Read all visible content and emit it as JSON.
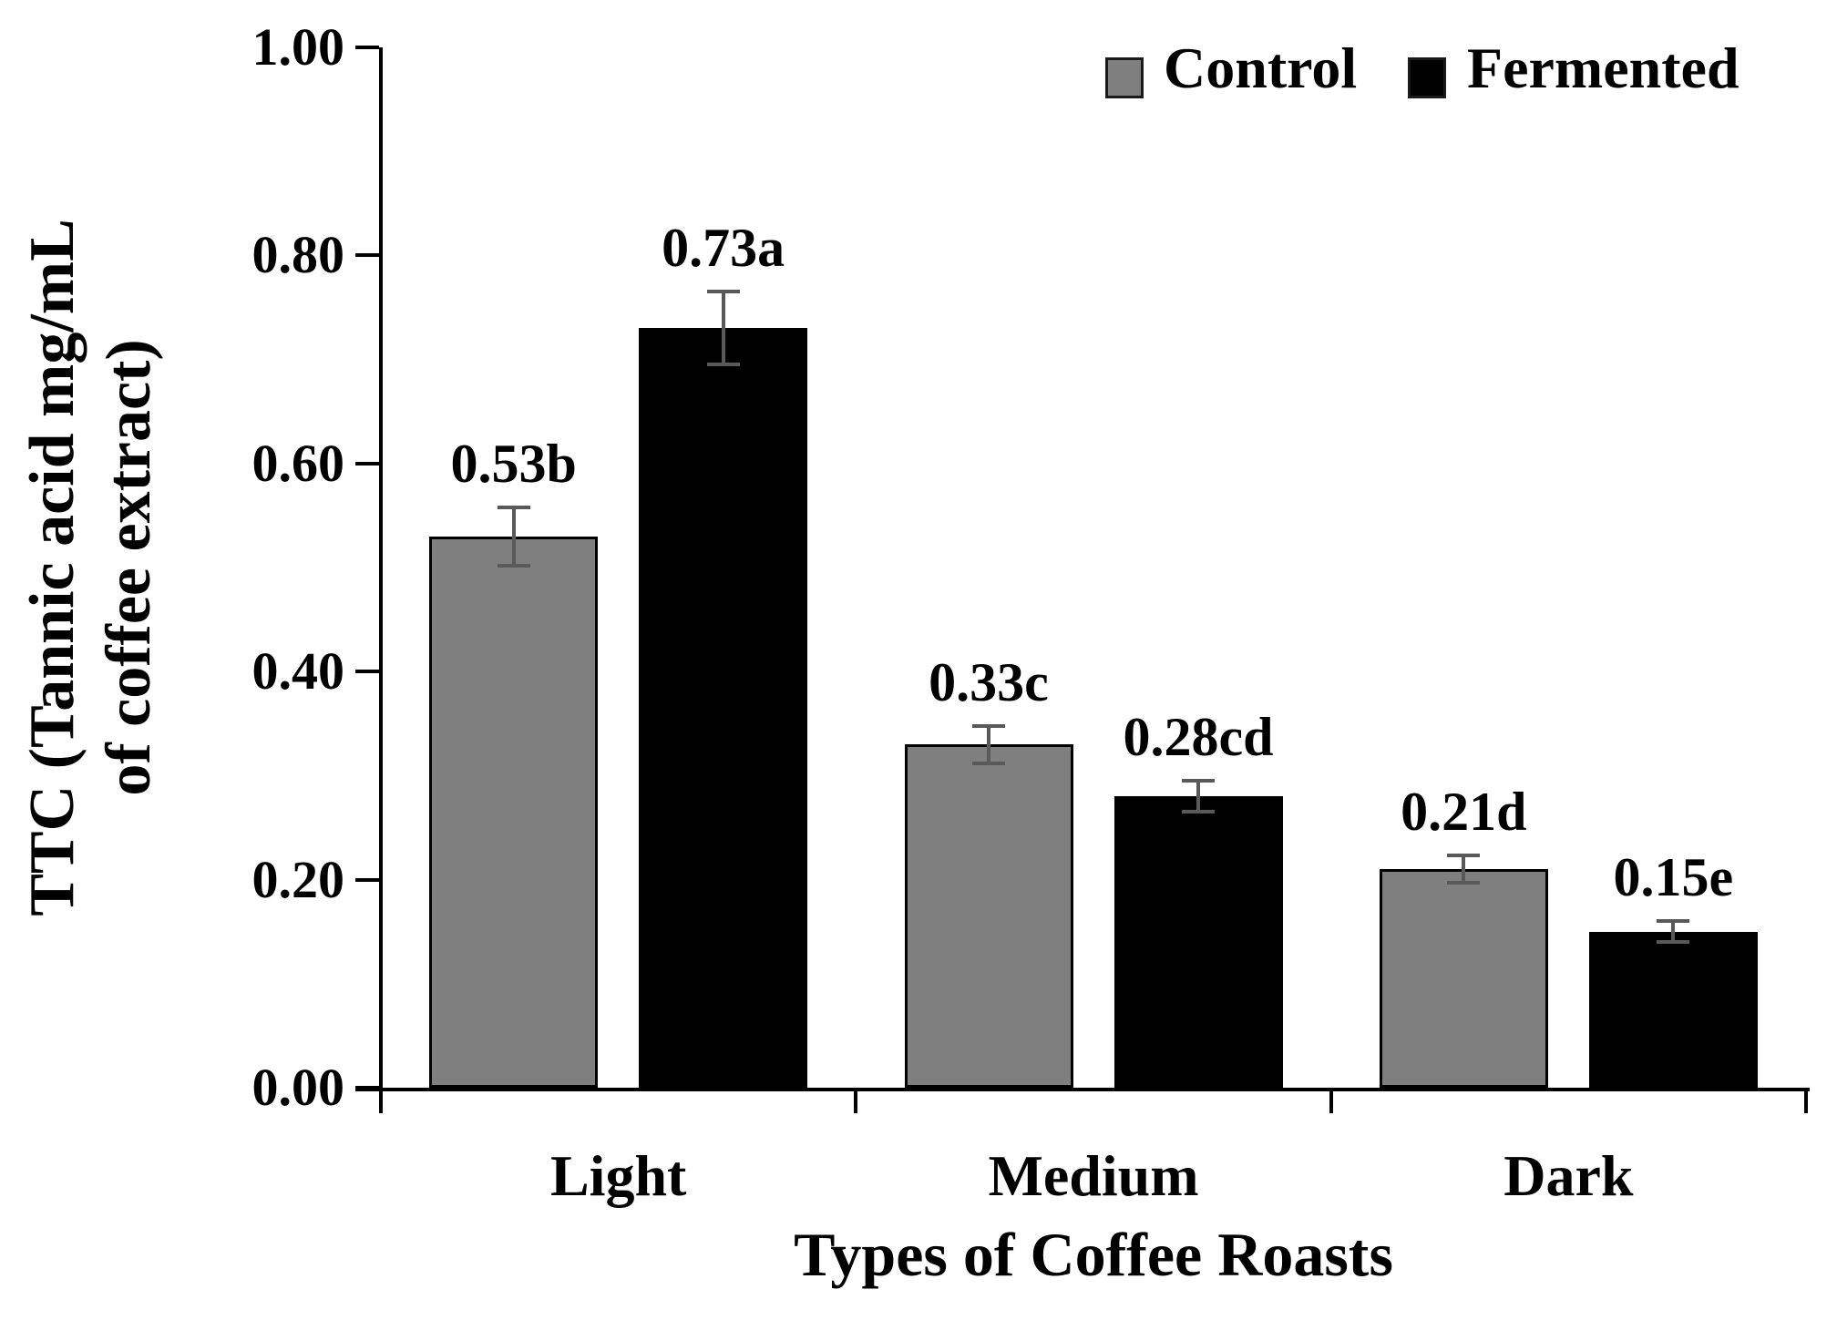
{
  "figure": {
    "background": "#ffffff",
    "text_color": "#000000"
  },
  "chart_data": {
    "type": "bar",
    "title": "",
    "categories": [
      "Light",
      "Medium",
      "Dark"
    ],
    "series": [
      {
        "name": "Control",
        "color": "#7f7f7f",
        "values": [
          0.53,
          0.33,
          0.21
        ],
        "labels": [
          "0.53b",
          "0.33c",
          "0.21d"
        ],
        "errors": [
          0.028,
          0.018,
          0.013
        ]
      },
      {
        "name": "Fermented",
        "color": "#000000",
        "values": [
          0.73,
          0.28,
          0.15
        ],
        "labels": [
          "0.73a",
          "0.28cd",
          "0.15e"
        ],
        "errors": [
          0.035,
          0.015,
          0.01
        ]
      }
    ],
    "xlabel": "Types of Coffee Roasts",
    "ylabel_line1": "TTC (Tannic acid mg/mL",
    "ylabel_line2": "of coffee extract)",
    "ylim": [
      0,
      1.0
    ],
    "y_ticks": [
      "1.00",
      "0.80",
      "0.60",
      "0.40",
      "0.20",
      "0.00"
    ],
    "grid": "off",
    "legend_position": "top-right",
    "error_bar_color": "#595959",
    "bar_border_color": "#000000",
    "axis_color": "#000000"
  }
}
